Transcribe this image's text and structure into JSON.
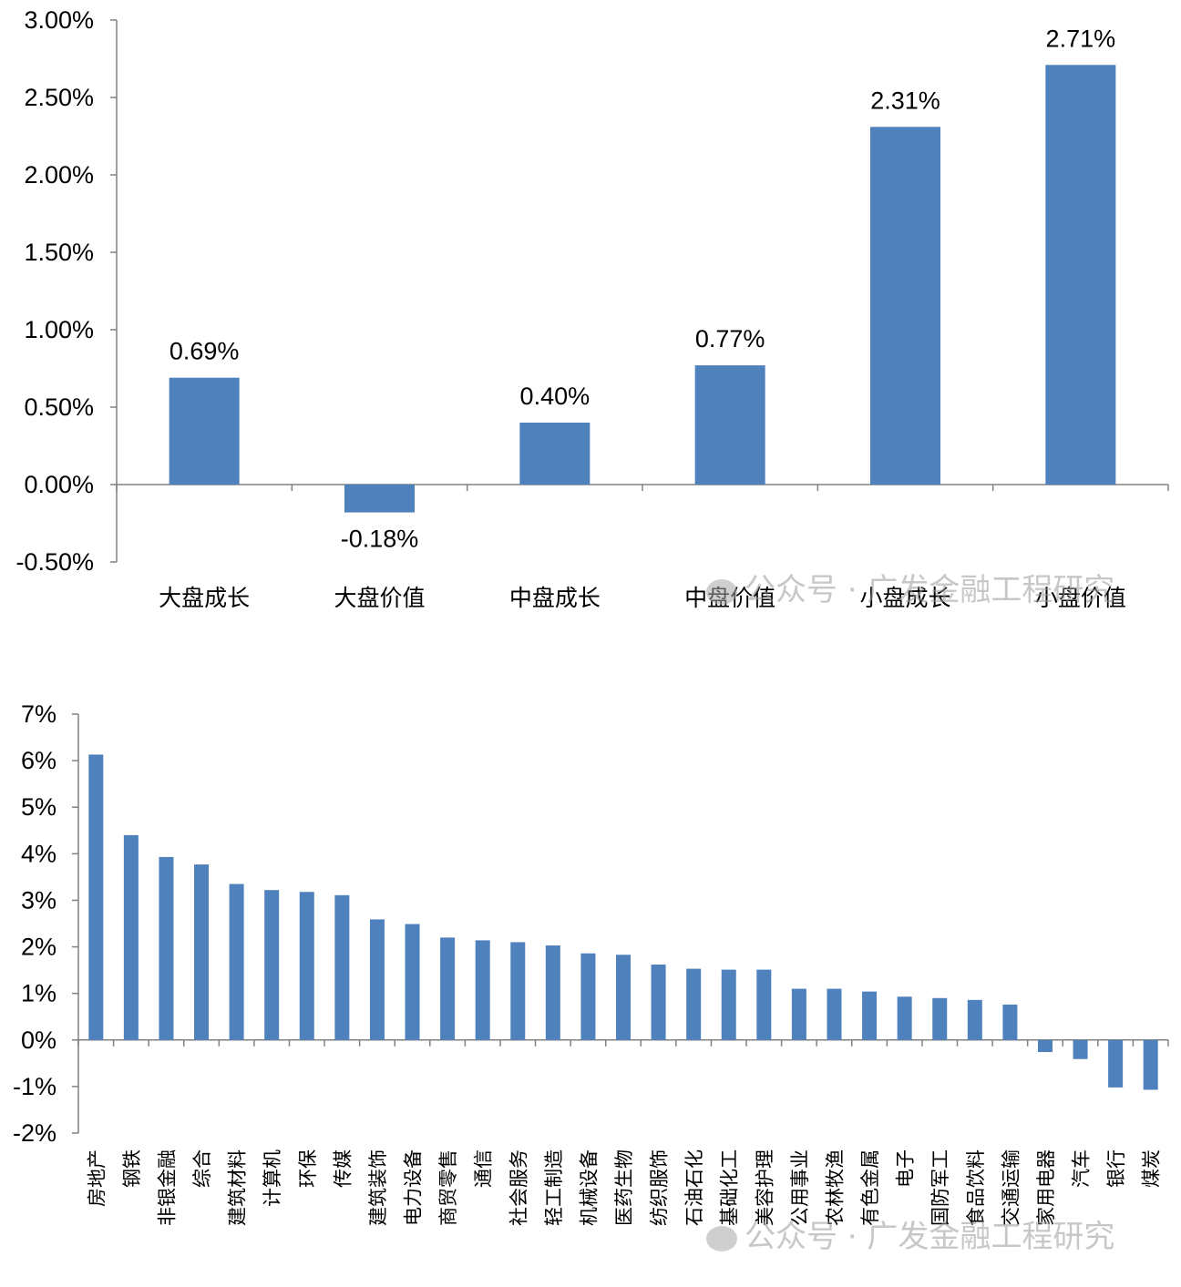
{
  "chart_data": [
    {
      "type": "bar",
      "categories": [
        "大盘成长",
        "大盘价值",
        "中盘成长",
        "中盘价值",
        "小盘成长",
        "小盘价值"
      ],
      "values": [
        0.69,
        -0.18,
        0.4,
        0.77,
        2.31,
        2.71
      ],
      "value_labels": [
        "0.69%",
        "-0.18%",
        "0.40%",
        "0.77%",
        "2.31%",
        "2.71%"
      ],
      "yticks": [
        "3.00%",
        "2.50%",
        "2.00%",
        "1.50%",
        "1.00%",
        "0.50%",
        "0.00%",
        "-0.50%"
      ],
      "ylim": [
        -0.5,
        3.0
      ],
      "bar_color": "#4F81BD",
      "grid": false
    },
    {
      "type": "bar",
      "categories": [
        "房地产",
        "钢铁",
        "非银金融",
        "综合",
        "建筑材料",
        "计算机",
        "环保",
        "传媒",
        "建筑装饰",
        "电力设备",
        "商贸零售",
        "通信",
        "社会服务",
        "轻工制造",
        "机械设备",
        "医药生物",
        "纺织服饰",
        "石油石化",
        "基础化工",
        "美容护理",
        "公用事业",
        "农林牧渔",
        "有色金属",
        "电子",
        "国防军工",
        "食品饮料",
        "交通运输",
        "家用电器",
        "汽车",
        "银行",
        "煤炭"
      ],
      "values": [
        6.13,
        4.4,
        3.93,
        3.77,
        3.35,
        3.22,
        3.18,
        3.11,
        2.59,
        2.49,
        2.2,
        2.14,
        2.1,
        2.03,
        1.86,
        1.83,
        1.62,
        1.53,
        1.51,
        1.51,
        1.1,
        1.1,
        1.04,
        0.93,
        0.9,
        0.86,
        0.76,
        -0.26,
        -0.41,
        -1.02,
        -1.07
      ],
      "yticks": [
        "7%",
        "6%",
        "5%",
        "4%",
        "3%",
        "2%",
        "1%",
        "0%",
        "-1%",
        "-2%"
      ],
      "ylim": [
        -2,
        7
      ],
      "bar_color": "#4F81BD",
      "grid": false
    }
  ],
  "watermark": "公众号 · 广发金融工程研究"
}
